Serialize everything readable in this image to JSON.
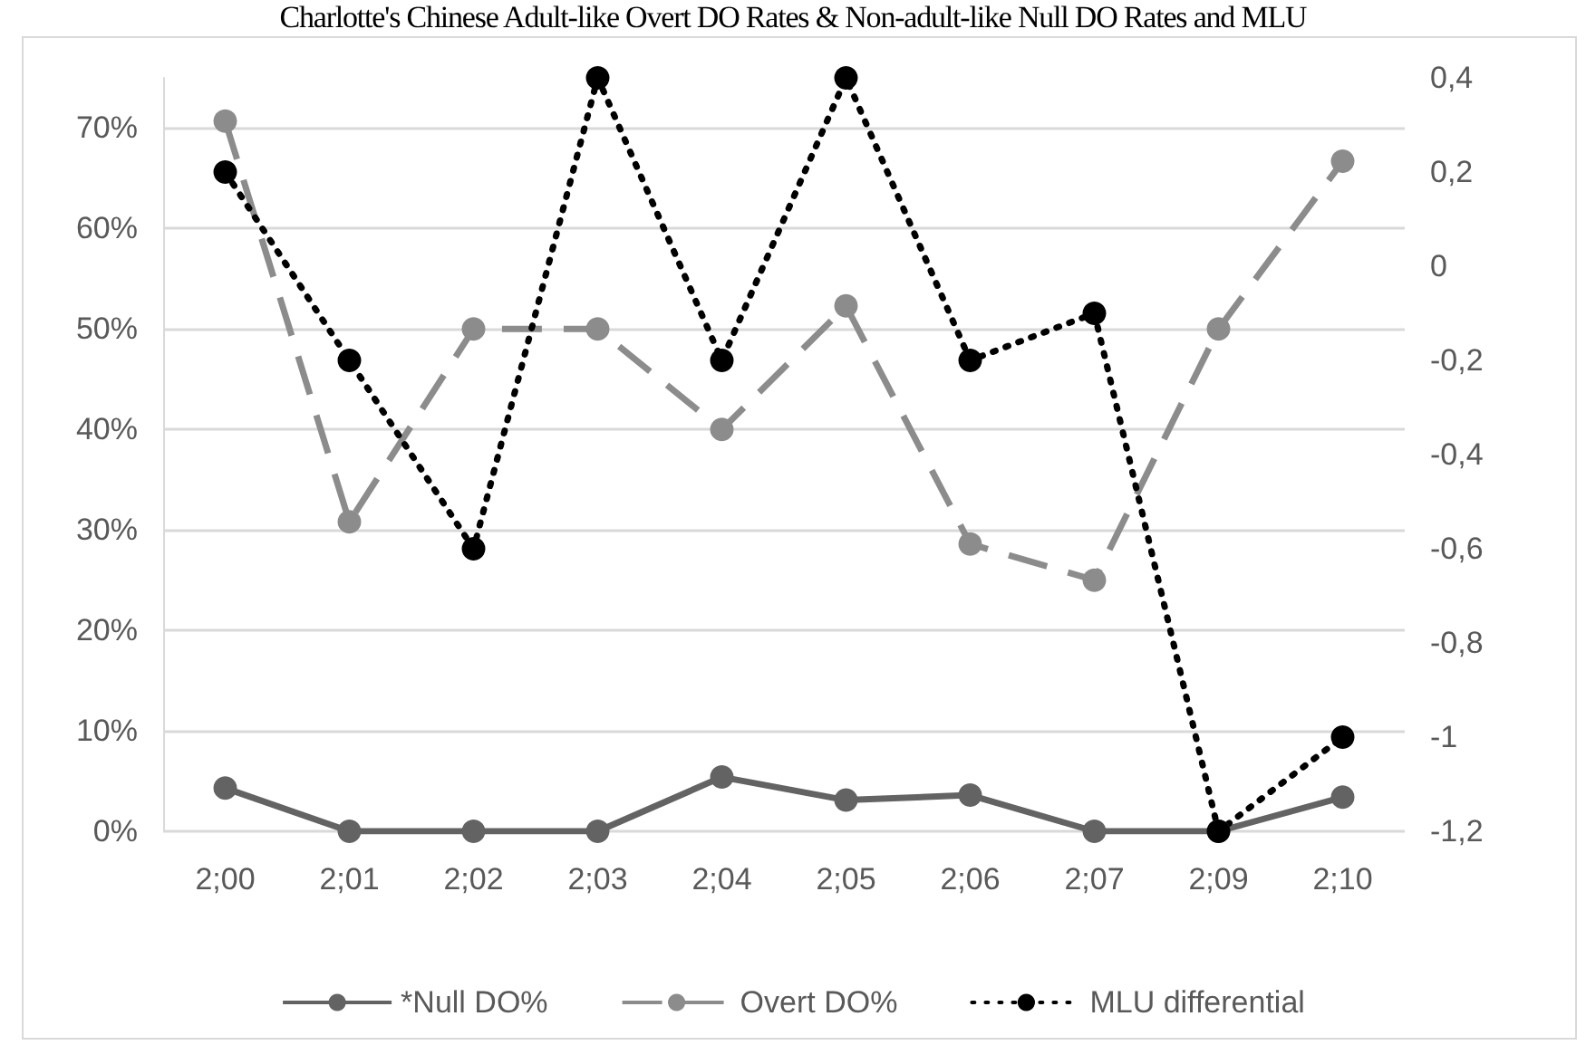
{
  "chart_data": {
    "type": "line",
    "title": "Charlotte's Chinese Adult-like Overt DO Rates & Non-adult-like Null DO Rates and MLU",
    "categories": [
      "2;00",
      "2;01",
      "2;02",
      "2;03",
      "2;04",
      "2;05",
      "2;06",
      "2;07",
      "2;09",
      "2;10"
    ],
    "series": [
      {
        "name": "*Null DO%",
        "color": "#636363",
        "line_style": "solid",
        "values": [
          4.3,
          0,
          0,
          0,
          5.4,
          3.1,
          3.6,
          0,
          0,
          3.4
        ]
      },
      {
        "name": "Overt DO%",
        "color": "#8c8c8c",
        "line_style": "dashed",
        "values": [
          70.7,
          30.8,
          50,
          50,
          40,
          52.3,
          28.6,
          25,
          50,
          66.7
        ]
      },
      {
        "name": "MLU differential",
        "color": "#000000",
        "line_style": "dotted",
        "axis": "y2",
        "values": [
          0.2,
          -0.2,
          -0.6,
          0.4,
          -0.2,
          0.4,
          -0.2,
          -0.1,
          -1.2,
          -1.0
        ]
      }
    ],
    "ylim": [
      0,
      75
    ],
    "yticks": [
      {
        "value": 0,
        "label": "0%"
      },
      {
        "value": 10,
        "label": "10%"
      },
      {
        "value": 20,
        "label": "20%"
      },
      {
        "value": 30,
        "label": "30%"
      },
      {
        "value": 40,
        "label": "40%"
      },
      {
        "value": 50,
        "label": "50%"
      },
      {
        "value": 60,
        "label": "60%"
      },
      {
        "value": 70,
        "label": "70%"
      }
    ],
    "y2lim": [
      -1.2,
      0.4
    ],
    "y2ticks": [
      {
        "value": -1.2,
        "label": "-1,2"
      },
      {
        "value": -1,
        "label": "-1"
      },
      {
        "value": -0.8,
        "label": "-0,8"
      },
      {
        "value": -0.6,
        "label": "-0,6"
      },
      {
        "value": -0.4,
        "label": "-0,4"
      },
      {
        "value": -0.2,
        "label": "-0,2"
      },
      {
        "value": 0,
        "label": "0"
      },
      {
        "value": 0.2,
        "label": "0,2"
      },
      {
        "value": 0.4,
        "label": "0,4"
      }
    ],
    "grid": "y",
    "legend": "bottom",
    "marker": "circle"
  }
}
